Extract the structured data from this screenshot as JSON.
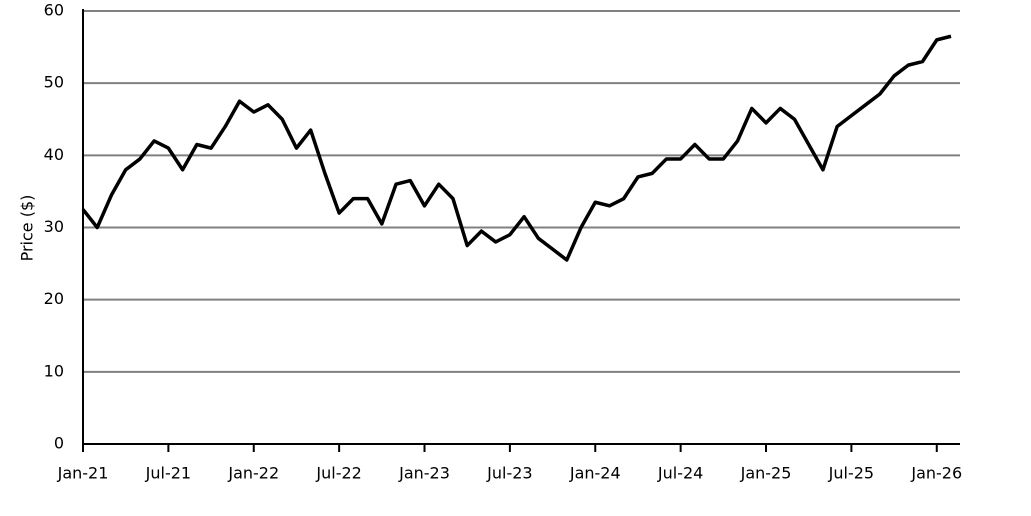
{
  "chart_data": {
    "type": "line",
    "y_label": "Price ($)",
    "x": [
      "2021-01",
      "2021-02",
      "2021-03",
      "2021-04",
      "2021-05",
      "2021-06",
      "2021-07",
      "2021-08",
      "2021-09",
      "2021-10",
      "2021-11",
      "2021-12",
      "2022-01",
      "2022-02",
      "2022-03",
      "2022-04",
      "2022-05",
      "2022-06",
      "2022-07",
      "2022-08",
      "2022-09",
      "2022-10",
      "2022-11",
      "2022-12",
      "2023-01",
      "2023-02",
      "2023-03",
      "2023-04",
      "2023-05",
      "2023-06",
      "2023-07",
      "2023-08",
      "2023-09",
      "2023-10",
      "2023-11",
      "2023-12",
      "2024-01",
      "2024-02",
      "2024-03",
      "2024-04",
      "2024-05",
      "2024-06",
      "2024-07",
      "2024-08",
      "2024-09",
      "2024-10",
      "2024-11",
      "2024-12",
      "2025-01",
      "2025-02",
      "2025-03",
      "2025-04",
      "2025-05",
      "2025-06",
      "2025-07",
      "2025-08",
      "2025-09",
      "2025-10",
      "2025-11",
      "2025-12",
      "2026-01",
      "2026-02"
    ],
    "series": [
      {
        "name": "Price",
        "color": "#000000",
        "values": [
          32.5,
          30,
          34.5,
          38,
          39.5,
          42,
          41,
          38,
          41.5,
          41,
          44,
          47.5,
          46,
          47,
          45,
          41,
          43.5,
          37.5,
          32,
          34,
          34,
          30.5,
          36,
          36.5,
          33,
          36,
          34,
          27.5,
          29.5,
          28,
          29,
          31.5,
          28.5,
          27,
          25.5,
          30,
          33.5,
          33,
          34,
          37,
          37.5,
          39.5,
          39.5,
          41.5,
          39.5,
          39.5,
          42,
          46.5,
          44.5,
          46.5,
          45,
          41.5,
          38,
          44,
          45.5,
          47,
          48.5,
          51,
          52.5,
          53,
          56,
          56.5
        ]
      }
    ],
    "xlim": [
      "2021-01",
      "2026-02"
    ],
    "xticks": [
      {
        "value": "2021-01",
        "label": "Jan-21"
      },
      {
        "value": "2021-07",
        "label": "Jul-21"
      },
      {
        "value": "2022-01",
        "label": "Jan-22"
      },
      {
        "value": "2022-07",
        "label": "Jul-22"
      },
      {
        "value": "2023-01",
        "label": "Jan-23"
      },
      {
        "value": "2023-07",
        "label": "Jul-23"
      },
      {
        "value": "2024-01",
        "label": "Jan-24"
      },
      {
        "value": "2024-07",
        "label": "Jul-24"
      },
      {
        "value": "2025-01",
        "label": "Jan-25"
      },
      {
        "value": "2025-07",
        "label": "Jul-25"
      },
      {
        "value": "2026-01",
        "label": "Jan-26"
      }
    ],
    "ylim": [
      0,
      60
    ],
    "yticks": [
      0,
      10,
      20,
      30,
      40,
      50,
      60
    ],
    "grid": true
  }
}
